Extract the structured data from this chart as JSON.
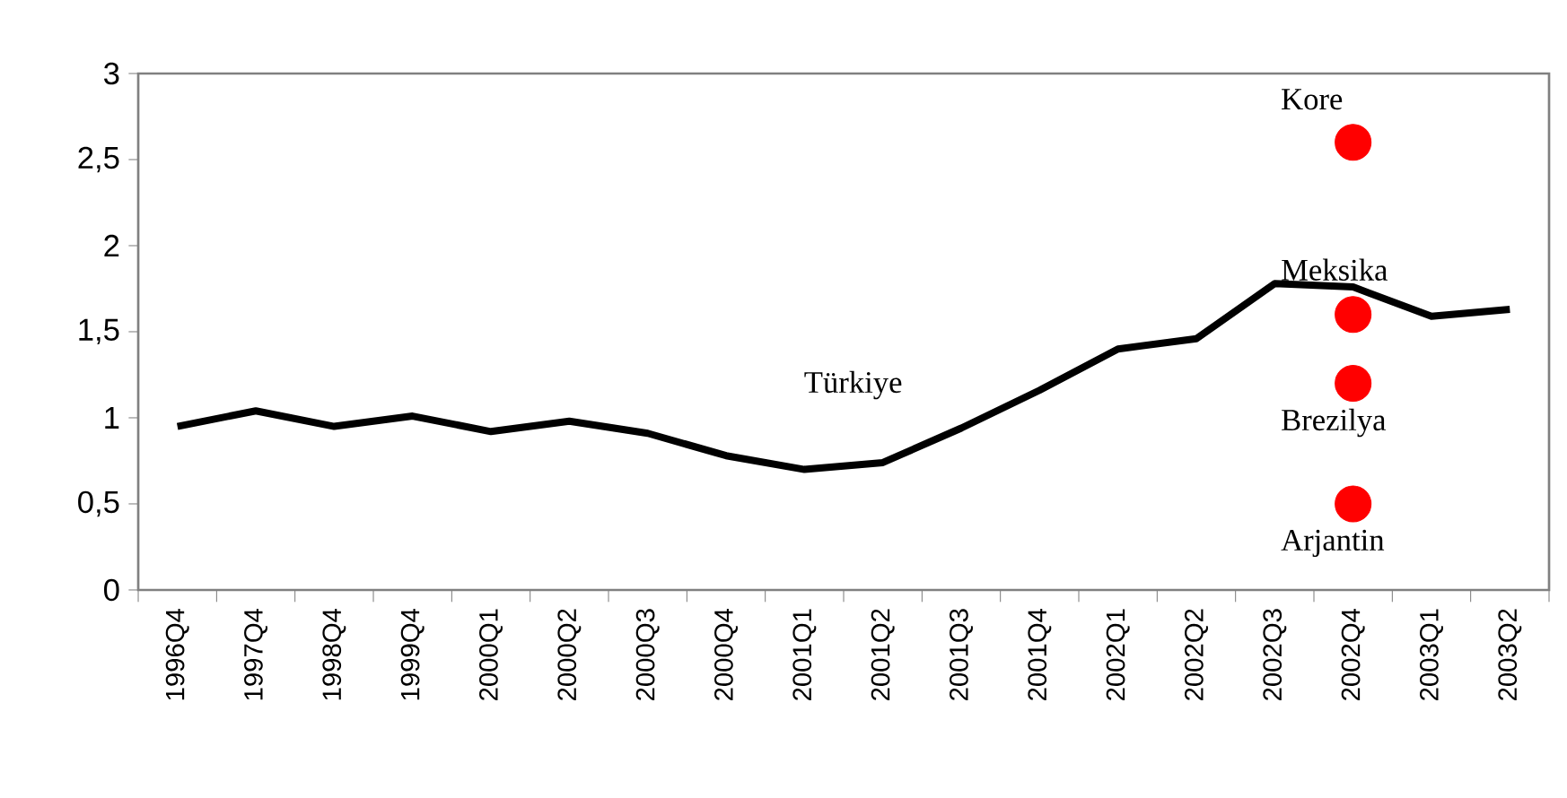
{
  "chart_data": {
    "type": "line",
    "categories": [
      "1996Q4",
      "1997Q4",
      "1998Q4",
      "1999Q4",
      "2000Q1",
      "2000Q2",
      "2000Q3",
      "2000Q4",
      "2001Q1",
      "2001Q2",
      "2001Q3",
      "2001Q4",
      "2002Q1",
      "2002Q2",
      "2002Q3",
      "2002Q4",
      "2003Q1",
      "2003Q2"
    ],
    "series": [
      {
        "name": "Türkiye",
        "color": "#000000",
        "values": [
          0.95,
          1.04,
          0.95,
          1.01,
          0.92,
          0.98,
          0.91,
          0.78,
          0.7,
          0.74,
          0.94,
          1.16,
          1.4,
          1.46,
          1.78,
          1.76,
          1.59,
          1.63
        ]
      },
      {
        "name": "Kore",
        "type": "scatter",
        "marker": "circle",
        "color": "#ff0000",
        "x": [
          "2002Q4"
        ],
        "values": [
          2.6
        ]
      },
      {
        "name": "Meksika",
        "type": "scatter",
        "marker": "circle",
        "color": "#ff0000",
        "x": [
          "2002Q4"
        ],
        "values": [
          1.6
        ]
      },
      {
        "name": "Brezilya",
        "type": "scatter",
        "marker": "circle",
        "color": "#ff0000",
        "x": [
          "2002Q4"
        ],
        "values": [
          1.2
        ]
      },
      {
        "name": "Arjantin",
        "type": "scatter",
        "marker": "circle",
        "color": "#ff0000",
        "x": [
          "2002Q4"
        ],
        "values": [
          0.5
        ]
      }
    ],
    "ylim": [
      0,
      3
    ],
    "yticks": [
      0,
      {
        "value": 0.5,
        "label": "0,5"
      },
      1,
      {
        "value": 1.5,
        "label": "1,5"
      },
      2,
      {
        "value": 2.5,
        "label": "2,5"
      },
      3
    ],
    "grid": false
  }
}
